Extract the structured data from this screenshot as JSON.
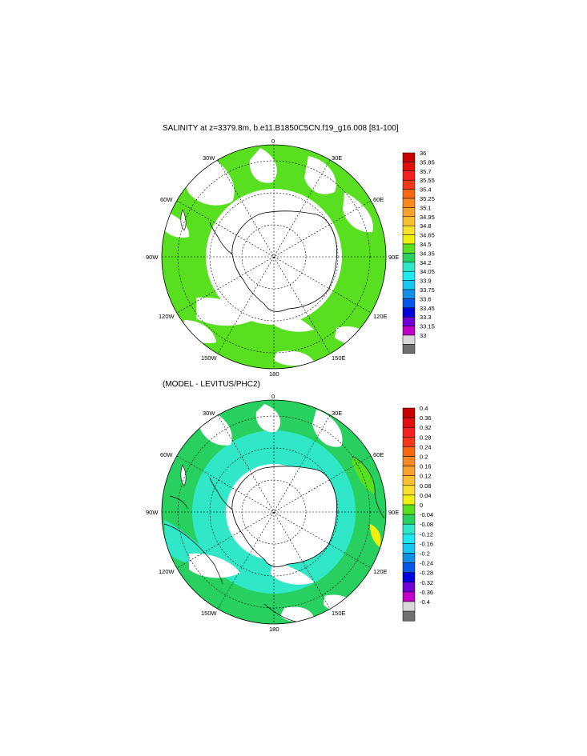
{
  "panel1": {
    "title": "SALINITY at z=3379.8m, b.e11.B1850C5CN.f19_g16.008 [81-100]",
    "colorbar": {
      "labels": [
        "36",
        "35.85",
        "35.7",
        "35.55",
        "35.4",
        "35.25",
        "35.1",
        "34.95",
        "34.8",
        "34.65",
        "34.5",
        "34.35",
        "34.2",
        "34.05",
        "33.9",
        "33.75",
        "33.6",
        "33.45",
        "33.3",
        "33.15",
        "33"
      ],
      "colors": [
        "#c80000",
        "#e01010",
        "#f82020",
        "#f83818",
        "#f86810",
        "#f88820",
        "#f8a030",
        "#f8c030",
        "#f8e030",
        "#f0f010",
        "#58e020",
        "#28d060",
        "#30e8c8",
        "#20e8f0",
        "#18c8f0",
        "#1090e8",
        "#0858e8",
        "#0000e0",
        "#7000d8",
        "#c000c8",
        "#d8d8d8",
        "#707070"
      ]
    }
  },
  "panel2": {
    "title": "(MODEL - LEVITUS/PHC2)",
    "colorbar": {
      "labels": [
        "0.4",
        "0.36",
        "0.32",
        "0.28",
        "0.24",
        "0.2",
        "0.16",
        "0.12",
        "0.08",
        "0.04",
        "0",
        "-0.04",
        "-0.08",
        "-0.12",
        "-0.16",
        "-0.2",
        "-0.24",
        "-0.28",
        "-0.32",
        "-0.36",
        "-0.4"
      ],
      "colors": [
        "#c80000",
        "#e01010",
        "#f82020",
        "#f83818",
        "#f86810",
        "#f88820",
        "#f8a030",
        "#f8c030",
        "#f8e030",
        "#f0f010",
        "#58e020",
        "#28d060",
        "#30e8c8",
        "#20e8f0",
        "#18c8f0",
        "#1090e8",
        "#0858e8",
        "#0000e0",
        "#7000d8",
        "#c000c8",
        "#d8d8d8",
        "#707070"
      ]
    }
  },
  "map_labels": {
    "lon": [
      "0",
      "30E",
      "60E",
      "90E",
      "120E",
      "150E",
      "180",
      "150W",
      "120W",
      "90W",
      "60W",
      "30W"
    ]
  },
  "colors": {
    "ocean_green": "#58e020",
    "ocean_cyan": "#30e8c8",
    "mid_green": "#28d060",
    "land": "#ffffff",
    "coast": "#000000"
  }
}
